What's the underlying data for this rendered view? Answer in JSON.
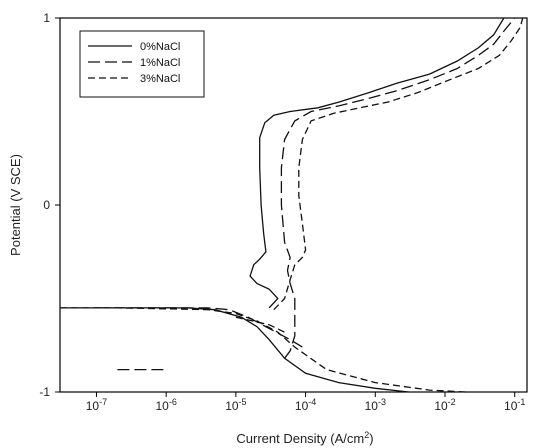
{
  "chart_data": {
    "type": "line",
    "title": "",
    "xlabel": "Current Density (A/cm",
    "xlabel_sup": "2",
    "xlabel_close": ")",
    "ylabel": "Potential (V SCE)",
    "xscale": "log",
    "xlim": [
      3e-08,
      0.15
    ],
    "ylim": [
      -1,
      1
    ],
    "x_ticks": [
      {
        "value": 1e-07,
        "base": "10",
        "exp": "-7"
      },
      {
        "value": 1e-06,
        "base": "10",
        "exp": "-6"
      },
      {
        "value": 1e-05,
        "base": "10",
        "exp": "-5"
      },
      {
        "value": 0.0001,
        "base": "10",
        "exp": "-4"
      },
      {
        "value": 0.001,
        "base": "10",
        "exp": "-3"
      },
      {
        "value": 0.01,
        "base": "10",
        "exp": "-2"
      },
      {
        "value": 0.1,
        "base": "10",
        "exp": "-1"
      }
    ],
    "y_ticks": [
      {
        "value": -1,
        "label": "-1"
      },
      {
        "value": 0,
        "label": "0"
      },
      {
        "value": 1,
        "label": "1"
      }
    ],
    "legend_position": "top-left",
    "series": [
      {
        "name": "0%NaCl",
        "dash": "solid",
        "segments": [
          [
            [
              3e-08,
              -0.55
            ],
            [
              5e-07,
              -0.55
            ],
            [
              2e-06,
              -0.55
            ],
            [
              5e-06,
              -0.56
            ],
            [
              1.2e-05,
              -0.6
            ],
            [
              2e-05,
              -0.65
            ],
            [
              3e-05,
              -0.72
            ],
            [
              5e-05,
              -0.82
            ],
            [
              0.0001,
              -0.9
            ],
            [
              0.0003,
              -0.95
            ],
            [
              0.001,
              -0.98
            ],
            [
              0.003,
              -1.0
            ]
          ],
          [
            [
              3e-05,
              -0.55
            ],
            [
              4e-05,
              -0.5
            ],
            [
              3e-05,
              -0.45
            ],
            [
              2e-05,
              -0.42
            ],
            [
              1.6e-05,
              -0.38
            ],
            [
              1.8e-05,
              -0.32
            ],
            [
              2.2e-05,
              -0.29
            ],
            [
              2.7e-05,
              -0.25
            ],
            [
              2.5e-05,
              -0.15
            ],
            [
              2.3e-05,
              0.0
            ],
            [
              2.2e-05,
              0.2
            ],
            [
              2.2e-05,
              0.36
            ],
            [
              2.6e-05,
              0.44
            ],
            [
              3.5e-05,
              0.48
            ],
            [
              6e-05,
              0.5
            ],
            [
              0.00015,
              0.52
            ],
            [
              0.0003,
              0.55
            ],
            [
              0.0008,
              0.6
            ],
            [
              0.002,
              0.65
            ],
            [
              0.006,
              0.7
            ],
            [
              0.015,
              0.77
            ],
            [
              0.03,
              0.84
            ],
            [
              0.05,
              0.91
            ],
            [
              0.07,
              1.0
            ]
          ]
        ]
      },
      {
        "name": "1%NaCl",
        "dash": "longdash",
        "segments": [
          [
            [
              1e-07,
              -0.55
            ],
            [
              1e-06,
              -0.55
            ],
            [
              4e-06,
              -0.55
            ],
            [
              8e-06,
              -0.56
            ],
            [
              1.5e-05,
              -0.6
            ],
            [
              3e-05,
              -0.66
            ],
            [
              6e-05,
              -0.72
            ],
            [
              9e-05,
              -0.76
            ]
          ],
          [
            [
              5e-05,
              -0.82
            ],
            [
              6e-05,
              -0.78
            ],
            [
              7e-05,
              -0.7
            ],
            [
              7e-05,
              -0.6
            ],
            [
              7e-05,
              -0.5
            ],
            [
              6e-05,
              -0.42
            ],
            [
              5.5e-05,
              -0.35
            ],
            [
              6e-05,
              -0.28
            ],
            [
              5e-05,
              -0.2
            ],
            [
              4.5e-05,
              0.0
            ],
            [
              4.5e-05,
              0.2
            ],
            [
              5e-05,
              0.35
            ],
            [
              7e-05,
              0.45
            ],
            [
              0.00012,
              0.5
            ],
            [
              0.0003,
              0.53
            ],
            [
              0.0008,
              0.57
            ],
            [
              0.002,
              0.61
            ],
            [
              0.006,
              0.67
            ],
            [
              0.015,
              0.73
            ],
            [
              0.03,
              0.8
            ],
            [
              0.05,
              0.86
            ],
            [
              0.07,
              0.93
            ],
            [
              0.1,
              1.0
            ]
          ],
          [
            [
              2e-07,
              -0.88
            ],
            [
              5e-07,
              -0.88
            ],
            [
              1e-06,
              -0.88
            ]
          ]
        ]
      },
      {
        "name": "3%NaCl",
        "dash": "dash",
        "segments": [
          [
            [
              3e-08,
              -0.55
            ],
            [
              2e-07,
              -0.55
            ],
            [
              1e-06,
              -0.555
            ],
            [
              4e-06,
              -0.56
            ],
            [
              1e-05,
              -0.58
            ],
            [
              2e-05,
              -0.62
            ],
            [
              4e-05,
              -0.68
            ],
            [
              7e-05,
              -0.76
            ],
            [
              0.0002,
              -0.88
            ],
            [
              0.001,
              -0.95
            ],
            [
              0.006,
              -0.99
            ],
            [
              0.02,
              -1.0
            ]
          ],
          [
            [
              3.5e-05,
              -0.56
            ],
            [
              5e-05,
              -0.5
            ],
            [
              6e-05,
              -0.4
            ],
            [
              7e-05,
              -0.32
            ],
            [
              9e-05,
              -0.28
            ],
            [
              0.0001,
              -0.24
            ],
            [
              9e-05,
              -0.1
            ],
            [
              8e-05,
              0.05
            ],
            [
              8e-05,
              0.2
            ],
            [
              9e-05,
              0.35
            ],
            [
              0.00012,
              0.45
            ],
            [
              0.00025,
              0.49
            ],
            [
              0.0006,
              0.52
            ],
            [
              0.0015,
              0.55
            ],
            [
              0.004,
              0.6
            ],
            [
              0.01,
              0.66
            ],
            [
              0.03,
              0.73
            ],
            [
              0.06,
              0.8
            ],
            [
              0.09,
              0.88
            ],
            [
              0.12,
              0.95
            ],
            [
              0.13,
              1.0
            ]
          ],
          [
            [
              1e-05,
              -0.6
            ],
            [
              3e-05,
              -0.64
            ],
            [
              5e-05,
              -0.68
            ]
          ]
        ]
      }
    ]
  }
}
